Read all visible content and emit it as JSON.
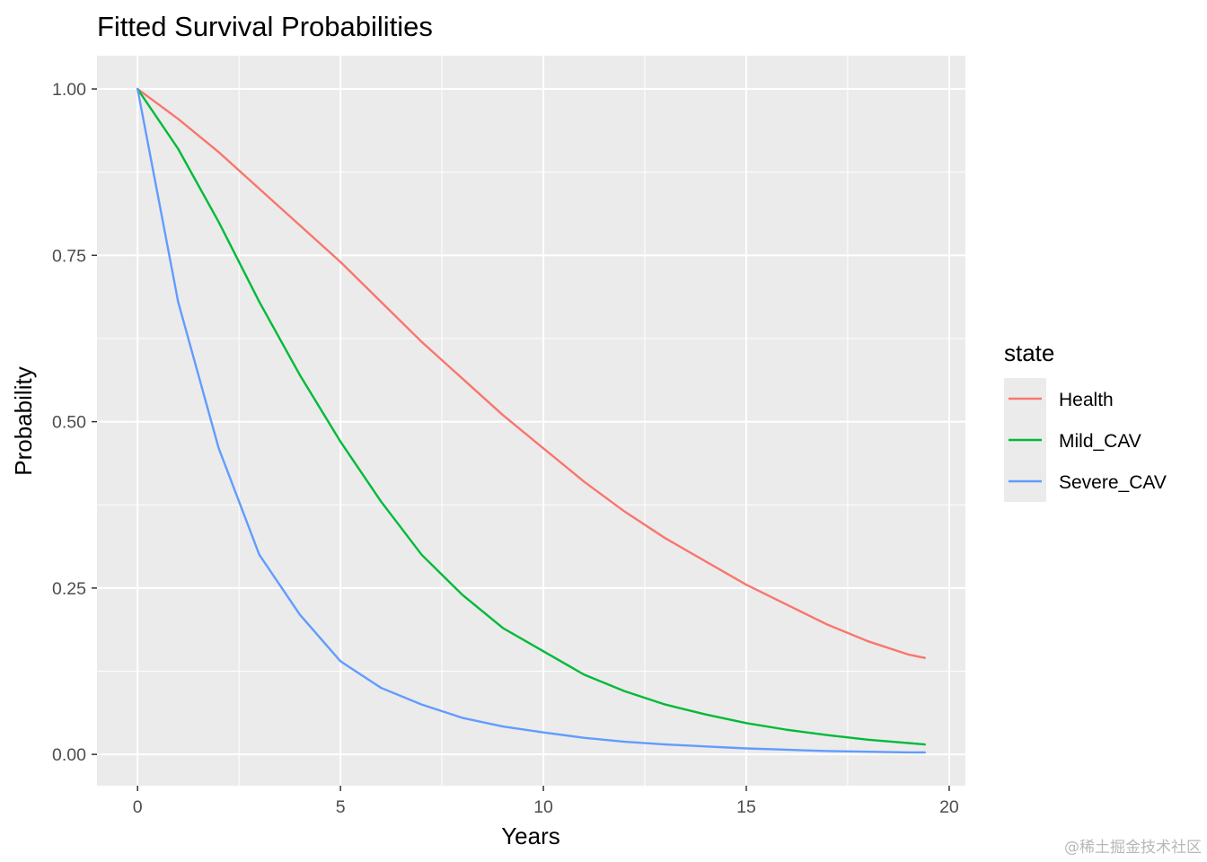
{
  "chart_data": {
    "type": "line",
    "title": "Fitted Survival Probabilities",
    "xlabel": "Years",
    "ylabel": "Probability",
    "xlim": [
      -1,
      20.4
    ],
    "ylim": [
      -0.047,
      1.05
    ],
    "x_ticks": [
      0,
      5,
      10,
      15,
      20
    ],
    "x_tick_labels": [
      "0",
      "5",
      "10",
      "15",
      "20"
    ],
    "x_minor": [
      2.5,
      7.5,
      12.5,
      17.5
    ],
    "y_ticks": [
      0,
      0.25,
      0.5,
      0.75,
      1.0
    ],
    "y_tick_labels": [
      "0.00",
      "0.25",
      "0.50",
      "0.75",
      "1.00"
    ],
    "y_minor": [
      0.125,
      0.375,
      0.625,
      0.875
    ],
    "grid": true,
    "legend": {
      "title": "state",
      "position": "right"
    },
    "x": [
      0,
      1,
      2,
      3,
      4,
      5,
      6,
      7,
      8,
      9,
      10,
      11,
      12,
      13,
      14,
      15,
      16,
      17,
      18,
      19,
      19.4
    ],
    "series": [
      {
        "name": "Health",
        "color": "#F8766D",
        "values": [
          1.0,
          0.955,
          0.905,
          0.85,
          0.795,
          0.74,
          0.68,
          0.62,
          0.565,
          0.51,
          0.46,
          0.41,
          0.365,
          0.325,
          0.29,
          0.255,
          0.225,
          0.195,
          0.17,
          0.15,
          0.145
        ]
      },
      {
        "name": "Mild_CAV",
        "color": "#00BA38",
        "values": [
          1.0,
          0.91,
          0.8,
          0.68,
          0.57,
          0.47,
          0.38,
          0.3,
          0.24,
          0.19,
          0.155,
          0.12,
          0.095,
          0.075,
          0.06,
          0.047,
          0.037,
          0.029,
          0.022,
          0.017,
          0.015
        ]
      },
      {
        "name": "Severe_CAV",
        "color": "#619CFF",
        "values": [
          1.0,
          0.68,
          0.46,
          0.3,
          0.21,
          0.14,
          0.1,
          0.075,
          0.055,
          0.042,
          0.033,
          0.025,
          0.019,
          0.015,
          0.012,
          0.009,
          0.007,
          0.005,
          0.004,
          0.003,
          0.003
        ]
      }
    ]
  },
  "watermark": "@稀土掘金技术社区"
}
